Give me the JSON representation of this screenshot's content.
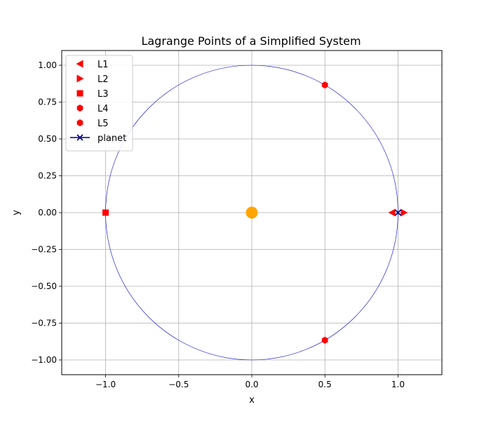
{
  "chart_data": {
    "type": "scatter",
    "title": "Lagrange Points of a Simplified System",
    "xlabel": "x",
    "ylabel": "y",
    "xlim": [
      -1.3,
      1.3
    ],
    "ylim": [
      -1.1,
      1.1
    ],
    "x_ticks": [
      -1.0,
      -0.5,
      0.0,
      0.5,
      1.0
    ],
    "x_tick_labels": [
      "−1.0",
      "−0.5",
      "0.0",
      "0.5",
      "1.0"
    ],
    "y_ticks": [
      -1.0,
      -0.75,
      -0.5,
      -0.25,
      0.0,
      0.25,
      0.5,
      0.75,
      1.0
    ],
    "y_tick_labels": [
      "−1.00",
      "−0.75",
      "−0.50",
      "−0.25",
      "0.00",
      "0.25",
      "0.50",
      "0.75",
      "1.00"
    ],
    "grid": true,
    "legend_position": "upper-left",
    "orbit": {
      "radius": 1.0,
      "color": "#0000cc"
    },
    "star": {
      "x": 0.0,
      "y": 0.0,
      "color": "#ffa500"
    },
    "series": [
      {
        "name": "L1",
        "marker": "triangle-left",
        "color": "#ff0000",
        "x": [
          0.96
        ],
        "y": [
          0.0
        ]
      },
      {
        "name": "L2",
        "marker": "triangle-right",
        "color": "#ff0000",
        "x": [
          1.04
        ],
        "y": [
          0.0
        ]
      },
      {
        "name": "L3",
        "marker": "square",
        "color": "#ff0000",
        "x": [
          -1.0
        ],
        "y": [
          0.0
        ]
      },
      {
        "name": "L4",
        "marker": "hexagon",
        "color": "#ff0000",
        "x": [
          0.5
        ],
        "y": [
          0.866
        ]
      },
      {
        "name": "L5",
        "marker": "hexagon",
        "color": "#ff0000",
        "x": [
          0.5
        ],
        "y": [
          -0.866
        ]
      },
      {
        "name": "planet",
        "marker": "x",
        "color": "#000080",
        "x": [
          1.0
        ],
        "y": [
          0.0
        ]
      }
    ]
  }
}
